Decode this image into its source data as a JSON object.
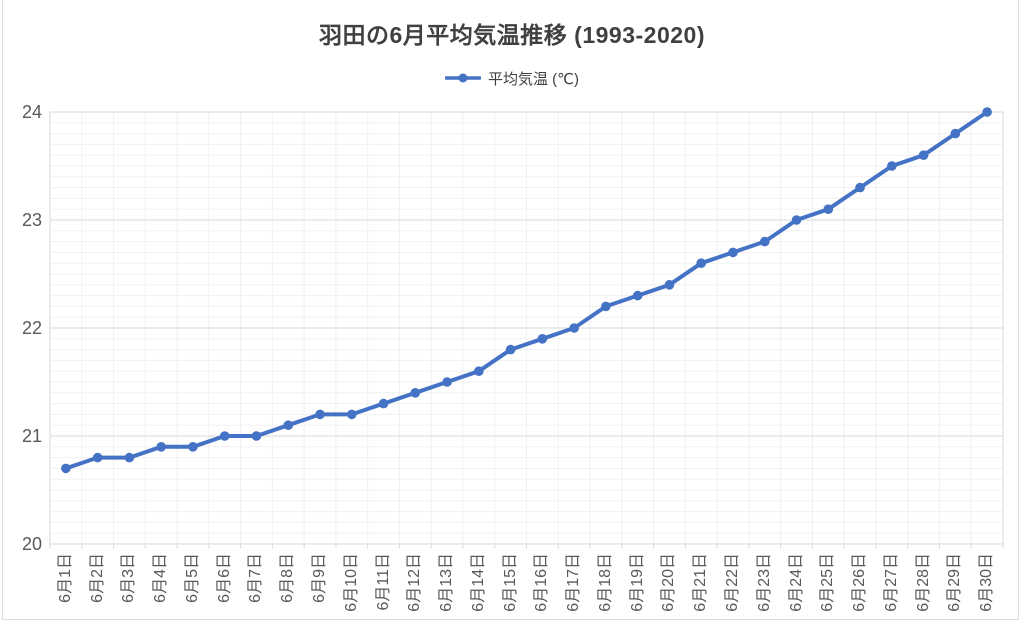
{
  "chart_data": {
    "type": "line",
    "title": "羽田の6月平均気温推移 (1993-2020)",
    "legend": {
      "label": "平均気温 (℃)",
      "position": "top-center"
    },
    "categories": [
      "6月1日",
      "6月2日",
      "6月3日",
      "6月4日",
      "6月5日",
      "6月6日",
      "6月7日",
      "6月8日",
      "6月9日",
      "6月10日",
      "6月11日",
      "6月12日",
      "6月13日",
      "6月14日",
      "6月15日",
      "6月16日",
      "6月17日",
      "6月18日",
      "6月19日",
      "6月20日",
      "6月21日",
      "6月22日",
      "6月23日",
      "6月24日",
      "6月25日",
      "6月26日",
      "6月27日",
      "6月28日",
      "6月29日",
      "6月30日"
    ],
    "series": [
      {
        "name": "平均気温 (℃)",
        "color": "#4472C4",
        "values": [
          20.7,
          20.8,
          20.8,
          20.9,
          20.9,
          21.0,
          21.0,
          21.1,
          21.2,
          21.2,
          21.3,
          21.4,
          21.5,
          21.6,
          21.8,
          21.9,
          22.0,
          22.2,
          22.3,
          22.4,
          22.6,
          22.7,
          22.8,
          23.0,
          23.1,
          23.3,
          23.5,
          23.6,
          23.8,
          24.0
        ]
      }
    ],
    "xlabel": "",
    "ylabel": "",
    "ylim": [
      20,
      24
    ],
    "yticks": [
      "20",
      "21",
      "22",
      "23",
      "24"
    ],
    "minor_y_step": 0.1,
    "grid": "major-and-minor",
    "marker": "circle"
  },
  "colors": {
    "line": "#4472C4",
    "major_grid": "#d9d9d9",
    "minor_grid": "#f1f1f1",
    "plot_border": "#d9d9d9",
    "tick_mark": "#d9d9d9",
    "title_text": "#404040",
    "axis_text": "#595959",
    "frame_border": "#dcdcdc"
  }
}
